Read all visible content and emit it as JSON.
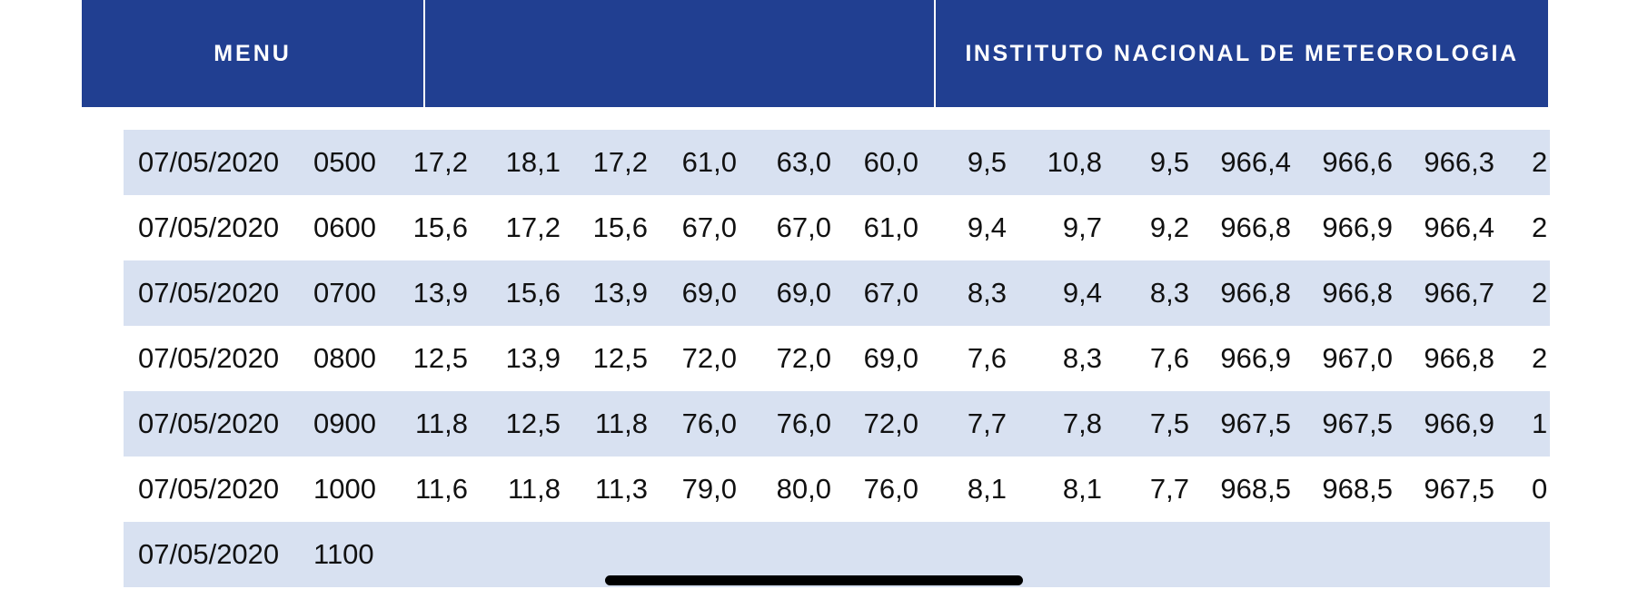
{
  "header": {
    "menu_label": "MENU",
    "title": "INSTITUTO NACIONAL DE METEOROLOGIA",
    "background_color": "#213f91"
  },
  "table": {
    "row_shade_color": "#d8e1f1",
    "rows": [
      [
        "07/05/2020",
        "0500",
        "17,2",
        "18,1",
        "17,2",
        "61,0",
        "63,0",
        "60,0",
        "9,5",
        "10,8",
        "9,5",
        "966,4",
        "966,6",
        "966,3",
        "2"
      ],
      [
        "07/05/2020",
        "0600",
        "15,6",
        "17,2",
        "15,6",
        "67,0",
        "67,0",
        "61,0",
        "9,4",
        "9,7",
        "9,2",
        "966,8",
        "966,9",
        "966,4",
        "2"
      ],
      [
        "07/05/2020",
        "0700",
        "13,9",
        "15,6",
        "13,9",
        "69,0",
        "69,0",
        "67,0",
        "8,3",
        "9,4",
        "8,3",
        "966,8",
        "966,8",
        "966,7",
        "2"
      ],
      [
        "07/05/2020",
        "0800",
        "12,5",
        "13,9",
        "12,5",
        "72,0",
        "72,0",
        "69,0",
        "7,6",
        "8,3",
        "7,6",
        "966,9",
        "967,0",
        "966,8",
        "2"
      ],
      [
        "07/05/2020",
        "0900",
        "11,8",
        "12,5",
        "11,8",
        "76,0",
        "76,0",
        "72,0",
        "7,7",
        "7,8",
        "7,5",
        "967,5",
        "967,5",
        "966,9",
        "1"
      ],
      [
        "07/05/2020",
        "1000",
        "11,6",
        "11,8",
        "11,3",
        "79,0",
        "80,0",
        "76,0",
        "8,1",
        "8,1",
        "7,7",
        "968,5",
        "968,5",
        "967,5",
        "0"
      ],
      [
        "07/05/2020",
        "1100",
        "",
        "",
        "",
        "",
        "",
        "",
        "",
        "",
        "",
        "",
        "",
        "",
        ""
      ]
    ]
  }
}
